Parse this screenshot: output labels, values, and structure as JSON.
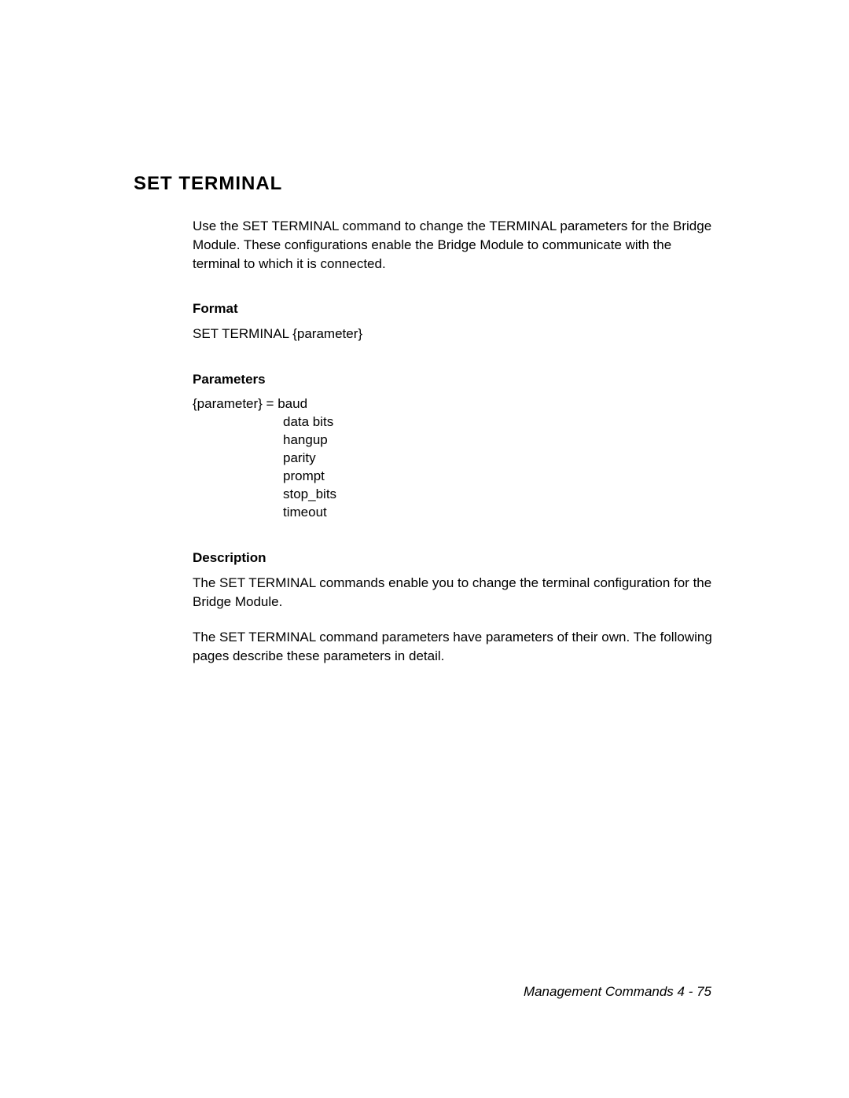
{
  "heading": "SET TERMINAL",
  "intro": "Use the SET TERMINAL command to change the TERMINAL parameters for the Bridge Module.  These configurations enable the Bridge Module to communicate with the terminal to which it is connected.",
  "format": {
    "title": "Format",
    "body": "SET TERMINAL {parameter}"
  },
  "parameters": {
    "title": "Parameters",
    "lead": "{parameter} = baud",
    "items": [
      "data bits",
      "hangup",
      "parity",
      "prompt",
      "stop_bits",
      "timeout"
    ]
  },
  "description": {
    "title": "Description",
    "para1": "The SET TERMINAL commands enable you to change the terminal configuration for the Bridge Module.",
    "para2": "The SET TERMINAL command parameters have parameters of their own.  The following pages describe these parameters in detail."
  },
  "footer": "Management Commands  4 - 75",
  "colors": {
    "background": "#ffffff",
    "text": "#000000"
  },
  "typography": {
    "heading_fontsize": 24,
    "body_fontsize": 17,
    "font_family": "Arial"
  }
}
